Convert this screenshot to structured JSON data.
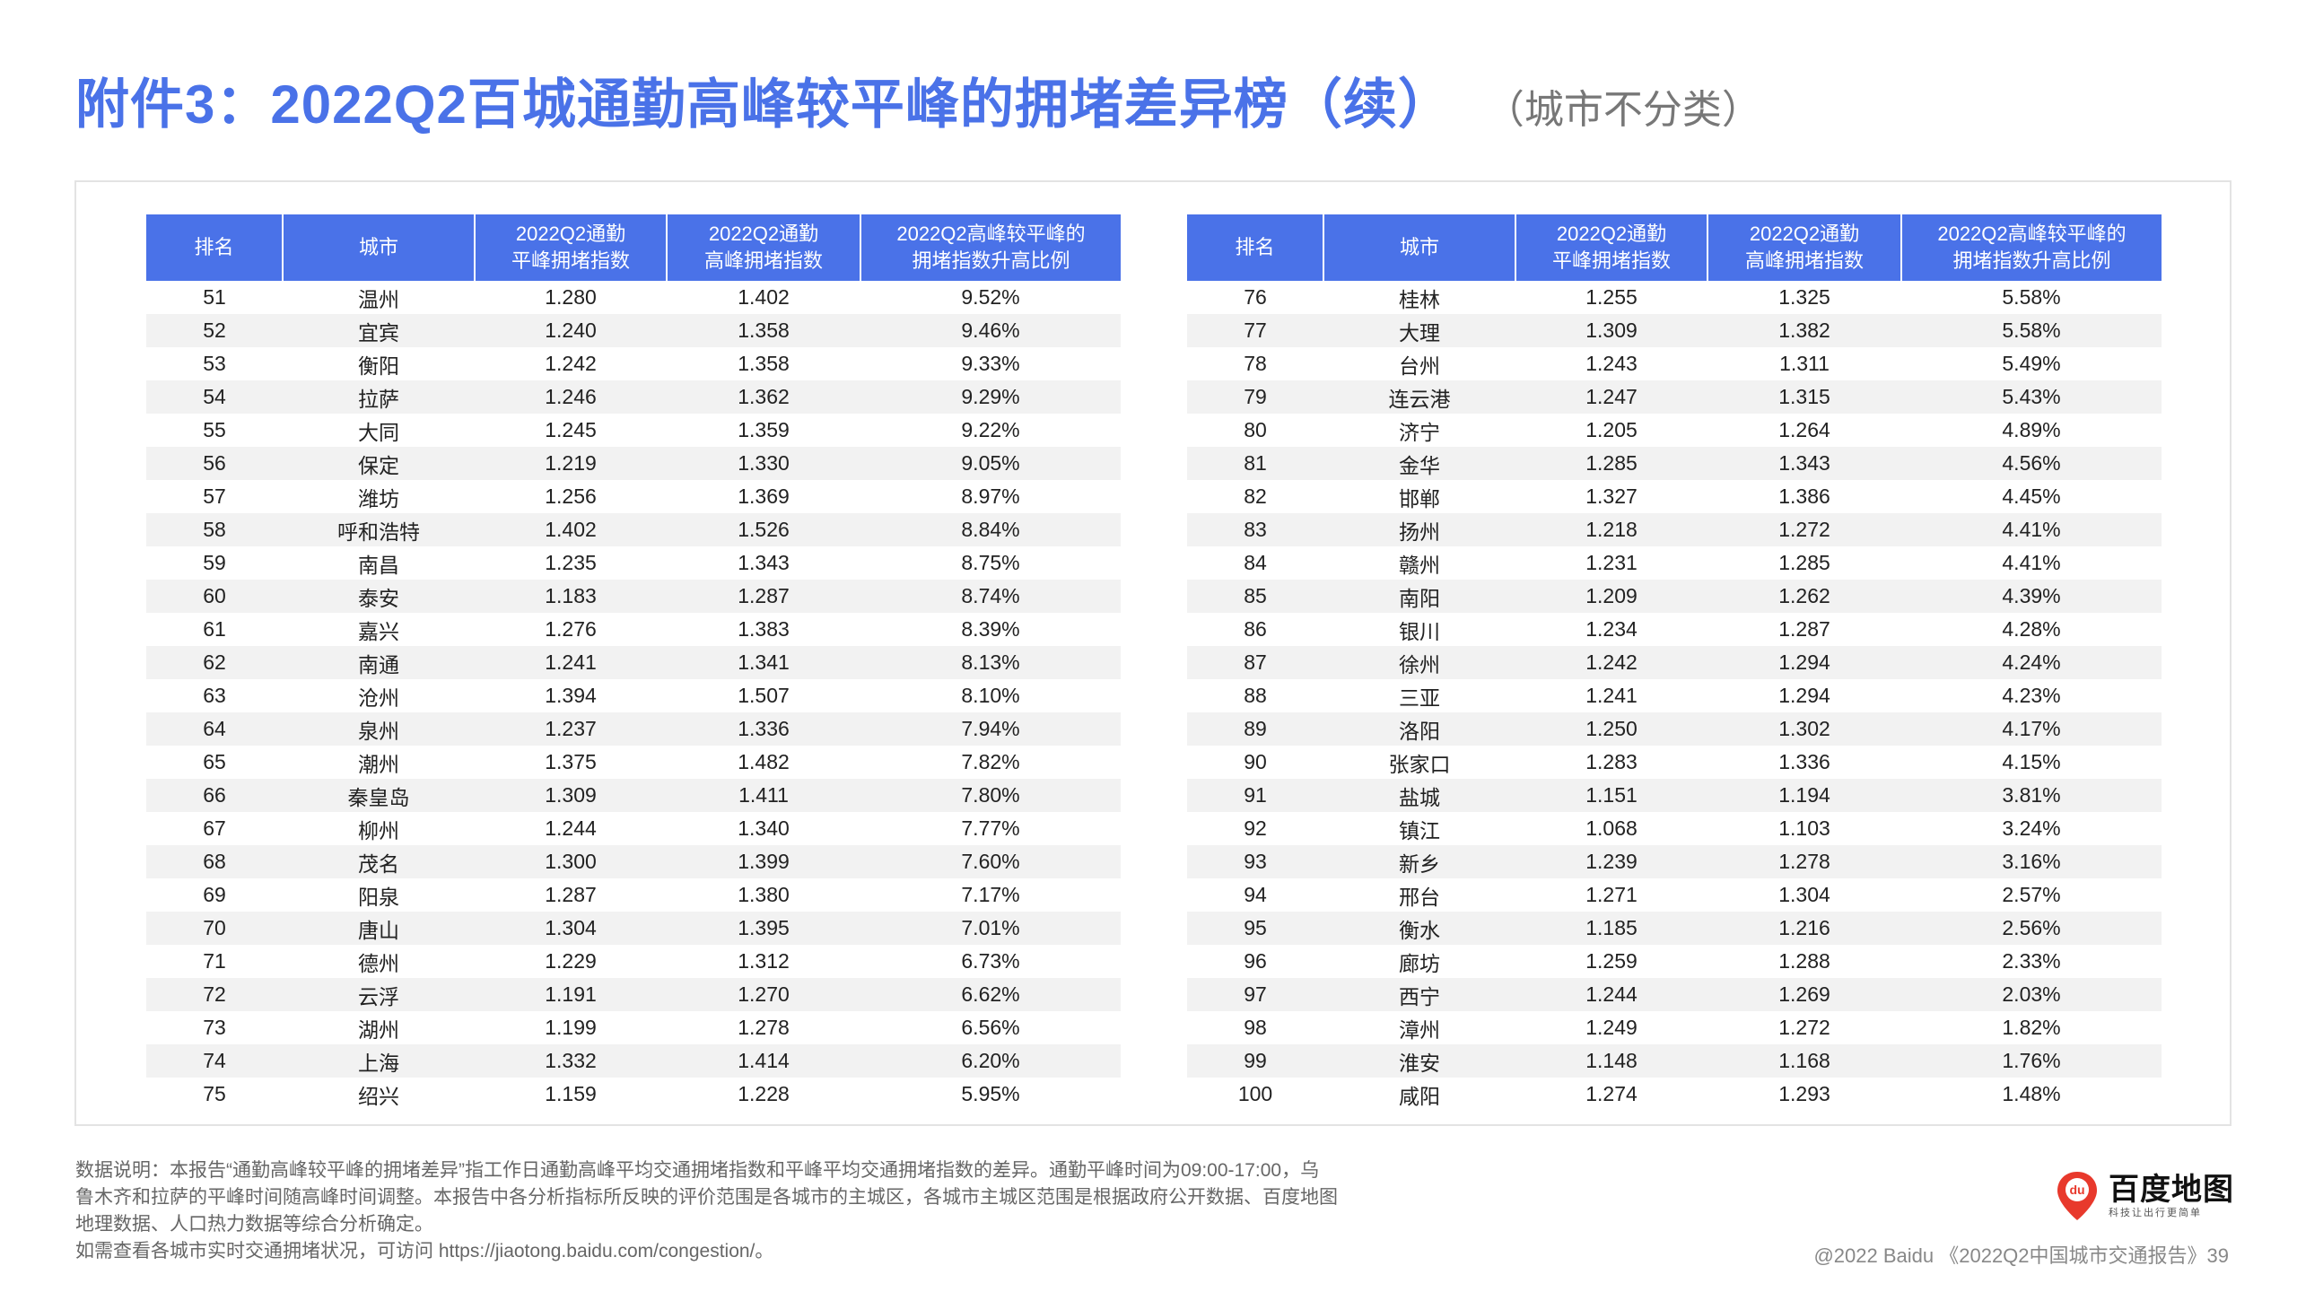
{
  "title": "附件3：2022Q2百城通勤高峰较平峰的拥堵差异榜（续）",
  "subtitle": "（城市不分类）",
  "table": {
    "headers": [
      "排名",
      "城市",
      "2022Q2通勤\n平峰拥堵指数",
      "2022Q2通勤\n高峰拥堵指数",
      "2022Q2高峰较平峰的\n拥堵指数升高比例"
    ],
    "left_rows": [
      [
        "51",
        "温州",
        "1.280",
        "1.402",
        "9.52%"
      ],
      [
        "52",
        "宜宾",
        "1.240",
        "1.358",
        "9.46%"
      ],
      [
        "53",
        "衡阳",
        "1.242",
        "1.358",
        "9.33%"
      ],
      [
        "54",
        "拉萨",
        "1.246",
        "1.362",
        "9.29%"
      ],
      [
        "55",
        "大同",
        "1.245",
        "1.359",
        "9.22%"
      ],
      [
        "56",
        "保定",
        "1.219",
        "1.330",
        "9.05%"
      ],
      [
        "57",
        "潍坊",
        "1.256",
        "1.369",
        "8.97%"
      ],
      [
        "58",
        "呼和浩特",
        "1.402",
        "1.526",
        "8.84%"
      ],
      [
        "59",
        "南昌",
        "1.235",
        "1.343",
        "8.75%"
      ],
      [
        "60",
        "泰安",
        "1.183",
        "1.287",
        "8.74%"
      ],
      [
        "61",
        "嘉兴",
        "1.276",
        "1.383",
        "8.39%"
      ],
      [
        "62",
        "南通",
        "1.241",
        "1.341",
        "8.13%"
      ],
      [
        "63",
        "沧州",
        "1.394",
        "1.507",
        "8.10%"
      ],
      [
        "64",
        "泉州",
        "1.237",
        "1.336",
        "7.94%"
      ],
      [
        "65",
        "潮州",
        "1.375",
        "1.482",
        "7.82%"
      ],
      [
        "66",
        "秦皇岛",
        "1.309",
        "1.411",
        "7.80%"
      ],
      [
        "67",
        "柳州",
        "1.244",
        "1.340",
        "7.77%"
      ],
      [
        "68",
        "茂名",
        "1.300",
        "1.399",
        "7.60%"
      ],
      [
        "69",
        "阳泉",
        "1.287",
        "1.380",
        "7.17%"
      ],
      [
        "70",
        "唐山",
        "1.304",
        "1.395",
        "7.01%"
      ],
      [
        "71",
        "德州",
        "1.229",
        "1.312",
        "6.73%"
      ],
      [
        "72",
        "云浮",
        "1.191",
        "1.270",
        "6.62%"
      ],
      [
        "73",
        "湖州",
        "1.199",
        "1.278",
        "6.56%"
      ],
      [
        "74",
        "上海",
        "1.332",
        "1.414",
        "6.20%"
      ],
      [
        "75",
        "绍兴",
        "1.159",
        "1.228",
        "5.95%"
      ]
    ],
    "right_rows": [
      [
        "76",
        "桂林",
        "1.255",
        "1.325",
        "5.58%"
      ],
      [
        "77",
        "大理",
        "1.309",
        "1.382",
        "5.58%"
      ],
      [
        "78",
        "台州",
        "1.243",
        "1.311",
        "5.49%"
      ],
      [
        "79",
        "连云港",
        "1.247",
        "1.315",
        "5.43%"
      ],
      [
        "80",
        "济宁",
        "1.205",
        "1.264",
        "4.89%"
      ],
      [
        "81",
        "金华",
        "1.285",
        "1.343",
        "4.56%"
      ],
      [
        "82",
        "邯郸",
        "1.327",
        "1.386",
        "4.45%"
      ],
      [
        "83",
        "扬州",
        "1.218",
        "1.272",
        "4.41%"
      ],
      [
        "84",
        "赣州",
        "1.231",
        "1.285",
        "4.41%"
      ],
      [
        "85",
        "南阳",
        "1.209",
        "1.262",
        "4.39%"
      ],
      [
        "86",
        "银川",
        "1.234",
        "1.287",
        "4.28%"
      ],
      [
        "87",
        "徐州",
        "1.242",
        "1.294",
        "4.24%"
      ],
      [
        "88",
        "三亚",
        "1.241",
        "1.294",
        "4.23%"
      ],
      [
        "89",
        "洛阳",
        "1.250",
        "1.302",
        "4.17%"
      ],
      [
        "90",
        "张家口",
        "1.283",
        "1.336",
        "4.15%"
      ],
      [
        "91",
        "盐城",
        "1.151",
        "1.194",
        "3.81%"
      ],
      [
        "92",
        "镇江",
        "1.068",
        "1.103",
        "3.24%"
      ],
      [
        "93",
        "新乡",
        "1.239",
        "1.278",
        "3.16%"
      ],
      [
        "94",
        "邢台",
        "1.271",
        "1.304",
        "2.57%"
      ],
      [
        "95",
        "衡水",
        "1.185",
        "1.216",
        "2.56%"
      ],
      [
        "96",
        "廊坊",
        "1.259",
        "1.288",
        "2.33%"
      ],
      [
        "97",
        "西宁",
        "1.244",
        "1.269",
        "2.03%"
      ],
      [
        "98",
        "漳州",
        "1.249",
        "1.272",
        "1.82%"
      ],
      [
        "99",
        "淮安",
        "1.148",
        "1.168",
        "1.76%"
      ],
      [
        "100",
        "咸阳",
        "1.274",
        "1.293",
        "1.48%"
      ]
    ]
  },
  "notes": [
    "数据说明：本报告“通勤高峰较平峰的拥堵差异”指工作日通勤高峰平均交通拥堵指数和平峰平均交通拥堵指数的差异。通勤平峰时间为09:00-17:00，乌",
    "鲁木齐和拉萨的平峰时间随高峰时间调整。本报告中各分析指标所反映的评价范围是各城市的主城区，各城市主城区范围是根据政府公开数据、百度地图",
    "地理数据、人口热力数据等综合分析确定。",
    "如需查看各城市实时交通拥堵状况，可访问 https://jiaotong.baidu.com/congestion/。"
  ],
  "logo": {
    "name": "百度地图",
    "slogan": "科技让出行更简单",
    "mark_text": "du",
    "icon": "map-pin-logo-icon",
    "color": "#e8392c"
  },
  "footer": "@2022 Baidu 《2022Q2中国城市交通报告》39",
  "colors": {
    "accent": "#4a72e8",
    "stripe": "#f2f2f2"
  }
}
